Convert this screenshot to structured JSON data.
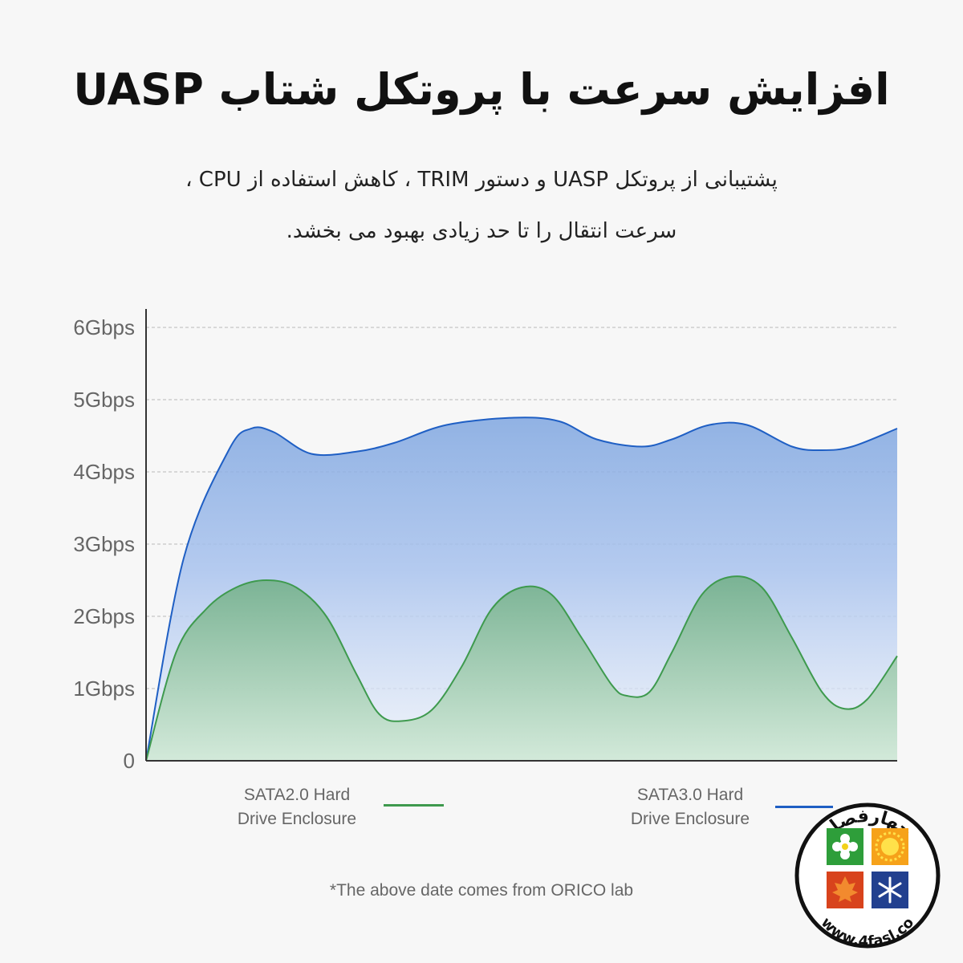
{
  "header": {
    "title": "افزایش سرعت با پروتکل شتاب UASP",
    "subtitle_line1": "پشتیبانی از پروتکل UASP و دستور TRIM ، کاهش استفاده از CPU ،",
    "subtitle_line2": "سرعت انتقال را تا حد زیادی بهبود می بخشد."
  },
  "chart_data": {
    "type": "area",
    "title": "",
    "xlabel": "",
    "ylabel": "",
    "yticks": [
      "0",
      "1Gbps",
      "2Gbps",
      "3Gbps",
      "4Gbps",
      "5Gbps",
      "6Gbps"
    ],
    "ylim": [
      0,
      6
    ],
    "xlim": [
      0,
      100
    ],
    "grid": true,
    "legend_position": "bottom",
    "series": [
      {
        "name": "SATA3.0 Hard Drive Enclosure",
        "color": "#1f5fc4",
        "x": [
          0,
          5,
          11,
          14,
          17,
          22,
          28,
          33,
          40,
          49,
          55,
          60,
          66,
          70,
          75,
          80,
          86,
          90,
          94,
          100
        ],
        "values": [
          0,
          2.8,
          4.3,
          4.6,
          4.55,
          4.25,
          4.28,
          4.4,
          4.65,
          4.75,
          4.7,
          4.45,
          4.35,
          4.45,
          4.65,
          4.65,
          4.35,
          4.3,
          4.35,
          4.6
        ]
      },
      {
        "name": "SATA2.0 Hard Drive Enclosure",
        "color": "#3e9a4e",
        "x": [
          0,
          4,
          8,
          12,
          16,
          20,
          24,
          28,
          31,
          34,
          38,
          42,
          46,
          50,
          54,
          58,
          62,
          64,
          67,
          70,
          74,
          78,
          82,
          86,
          90,
          93,
          96,
          100
        ],
        "values": [
          0,
          1.5,
          2.1,
          2.4,
          2.5,
          2.4,
          2.0,
          1.2,
          0.65,
          0.55,
          0.7,
          1.3,
          2.1,
          2.4,
          2.3,
          1.7,
          1.05,
          0.9,
          0.95,
          1.5,
          2.3,
          2.55,
          2.4,
          1.7,
          0.95,
          0.72,
          0.85,
          1.45
        ]
      }
    ]
  },
  "legend": {
    "sata2_line1": "SATA2.0 Hard",
    "sata2_line2": "Drive Enclosure",
    "sata3_line1": "SATA3.0 Hard",
    "sata3_line2": "Drive Enclosure"
  },
  "footnote": "*The above date comes from ORICO lab",
  "logo": {
    "brand_text": "چهارفصل",
    "url_text": "www.4fasl.co",
    "colors": [
      "#2e9e3a",
      "#f6a21a",
      "#d8431c",
      "#22408f"
    ]
  }
}
